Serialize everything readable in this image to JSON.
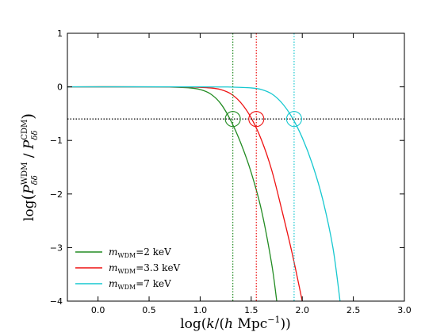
{
  "chart_data": {
    "type": "line",
    "xlabel": "log(k/(h Mpc⁻¹))",
    "ylabel": "log(P_δδ^WDM / P_δδ^CDM)",
    "xlim": [
      -0.3,
      3.0
    ],
    "ylim": [
      -4,
      1
    ],
    "xticks": [
      0.0,
      0.5,
      1.0,
      1.5,
      2.0,
      2.5,
      3.0
    ],
    "yticks": [
      -4,
      -3,
      -2,
      -1,
      0,
      1
    ],
    "grid": false,
    "legend_position": "lower-left",
    "reference_lines": {
      "horizontal_y": -0.6,
      "horizontal_color": "#000000",
      "horizontal_style": "dotted"
    },
    "series": [
      {
        "name": "m_WDM = 2 keV",
        "legend_symbol": "m",
        "legend_subscript": "WDM",
        "legend_value": "=2 keV",
        "color": "#228b22",
        "x": [
          -0.3,
          0.4,
          0.7,
          0.9,
          1.0,
          1.1,
          1.2,
          1.3,
          1.4,
          1.5,
          1.6,
          1.7,
          1.75
        ],
        "y": [
          0.0,
          0.0,
          -0.004,
          -0.02,
          -0.05,
          -0.13,
          -0.31,
          -0.63,
          -1.06,
          -1.6,
          -2.3,
          -3.3,
          -4.0
        ],
        "vline_x": 1.32,
        "circle_x": 1.32,
        "circle_y": -0.6
      },
      {
        "name": "m_WDM = 3.3 keV",
        "legend_symbol": "m",
        "legend_subscript": "WDM",
        "legend_value": "=3.3 keV",
        "color": "#ee1111",
        "x": [
          -0.3,
          0.6,
          0.9,
          1.1,
          1.2,
          1.3,
          1.4,
          1.5,
          1.6,
          1.7,
          1.8,
          1.9,
          2.0
        ],
        "y": [
          0.0,
          0.0,
          -0.004,
          -0.02,
          -0.05,
          -0.13,
          -0.3,
          -0.58,
          -0.99,
          -1.55,
          -2.3,
          -3.1,
          -4.0
        ],
        "vline_x": 1.55,
        "circle_x": 1.55,
        "circle_y": -0.6
      },
      {
        "name": "m_WDM = 7 keV",
        "legend_symbol": "m",
        "legend_subscript": "WDM",
        "legend_value": "=7 keV",
        "color": "#17c8d0",
        "x": [
          -0.3,
          1.0,
          1.3,
          1.5,
          1.6,
          1.7,
          1.8,
          1.9,
          2.0,
          2.1,
          2.2,
          2.3,
          2.37
        ],
        "y": [
          0.0,
          0.0,
          -0.004,
          -0.02,
          -0.05,
          -0.13,
          -0.3,
          -0.57,
          -0.95,
          -1.45,
          -2.1,
          -3.0,
          -4.0
        ],
        "vline_x": 1.92,
        "circle_x": 1.92,
        "circle_y": -0.6
      }
    ]
  }
}
